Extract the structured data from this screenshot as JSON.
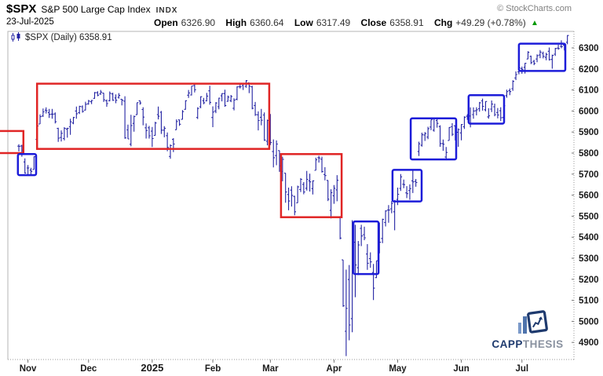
{
  "header": {
    "symbol": "$SPX",
    "name": "S&P 500 Large Cap Index",
    "exchange": "INDX",
    "date": "23-Jul-2025",
    "copyright": "© StockCharts.com",
    "quote": {
      "open_label": "Open",
      "open_value": "6326.90",
      "high_label": "High",
      "high_value": "6360.64",
      "low_label": "Low",
      "low_value": "6317.49",
      "close_label": "Close",
      "close_value": "6358.91",
      "chg_label": "Chg",
      "chg_value": "+49.29 (+0.78%)",
      "direction_icon": "▲"
    }
  },
  "legend": {
    "label": "$SPX (Daily) 6358.91"
  },
  "watermark": {
    "brand_primary": "CAPP",
    "brand_secondary": "THESIS"
  },
  "colors": {
    "bar": "#2424a3",
    "red_box": "#e02525",
    "blue_box": "#1c1cd9",
    "up_arrow": "#009900",
    "axis_text": "#1a1a1a",
    "border_solid": "#b4b4b4",
    "border_dotted": "#999999",
    "logo_navy": "#1e3a6e",
    "logo_gray": "#8a92a0",
    "logo_bar_blue": "#7a99c9"
  },
  "chart_data": {
    "type": "ohlc-bar",
    "title": "$SPX (Daily)",
    "last_price": 6358.91,
    "grid": "off",
    "y_axis_side": "right",
    "y_ticks": [
      6300,
      6200,
      6100,
      6000,
      5900,
      5800,
      5700,
      5600,
      5500,
      5400,
      5300,
      5200,
      5100,
      5000,
      4900
    ],
    "ylim": [
      4820,
      6380
    ],
    "x_axis_labels": [
      {
        "label": "Nov",
        "bar_index": 3
      },
      {
        "label": "Dec",
        "bar_index": 23
      },
      {
        "label": "2025",
        "bar_index": 44,
        "year": true
      },
      {
        "label": "Feb",
        "bar_index": 64
      },
      {
        "label": "Mar",
        "bar_index": 83
      },
      {
        "label": "Apr",
        "bar_index": 104
      },
      {
        "label": "May",
        "bar_index": 125
      },
      {
        "label": "Jun",
        "bar_index": 146
      },
      {
        "label": "Jul",
        "bar_index": 166
      }
    ],
    "bars_format": [
      "open",
      "high",
      "low",
      "close"
    ],
    "bars": [
      [
        5833,
        5842,
        5808,
        5832
      ],
      [
        5834,
        5839,
        5783,
        5814
      ],
      [
        5758,
        5775,
        5702,
        5705
      ],
      [
        5729,
        5743,
        5697,
        5729
      ],
      [
        5719,
        5730,
        5697,
        5713
      ],
      [
        5722,
        5784,
        5722,
        5783
      ],
      [
        5865,
        5930,
        5865,
        5929
      ],
      [
        5938,
        5984,
        5938,
        5973
      ],
      [
        5976,
        6012,
        5972,
        5996
      ],
      [
        6004,
        6017,
        5988,
        6001
      ],
      [
        5992,
        6010,
        5967,
        5984
      ],
      [
        5985,
        6010,
        5963,
        5985
      ],
      [
        5986,
        5993,
        5941,
        5949
      ],
      [
        5917,
        5920,
        5853,
        5871
      ],
      [
        5874,
        5908,
        5855,
        5894
      ],
      [
        5869,
        5923,
        5860,
        5917
      ],
      [
        5914,
        5920,
        5873,
        5917
      ],
      [
        5925,
        5963,
        5887,
        5949
      ],
      [
        5943,
        5972,
        5937,
        5969
      ],
      [
        6000,
        6021,
        5963,
        5987
      ],
      [
        5992,
        6025,
        5986,
        6022
      ],
      [
        6020,
        6027,
        5992,
        5998
      ],
      [
        6004,
        6044,
        6003,
        6032
      ],
      [
        6034,
        6053,
        6030,
        6047
      ],
      [
        6044,
        6053,
        6033,
        6050
      ],
      [
        6060,
        6090,
        6058,
        6087
      ],
      [
        6087,
        6094,
        6070,
        6075
      ],
      [
        6081,
        6100,
        6077,
        6090
      ],
      [
        6085,
        6086,
        6043,
        6053
      ],
      [
        6049,
        6055,
        6020,
        6035
      ],
      [
        6049,
        6093,
        6046,
        6084
      ],
      [
        6081,
        6087,
        6048,
        6051
      ],
      [
        6062,
        6079,
        6037,
        6051
      ],
      [
        6065,
        6085,
        6059,
        6074
      ],
      [
        6056,
        6057,
        6027,
        6051
      ],
      [
        6047,
        6070,
        5868,
        5872
      ],
      [
        5910,
        5935,
        5867,
        5867
      ],
      [
        5842,
        5982,
        5832,
        5931
      ],
      [
        5941,
        5978,
        5902,
        5974
      ],
      [
        5982,
        6040,
        5982,
        6040
      ],
      [
        6049,
        6050,
        6030,
        6038
      ],
      [
        6007,
        6018,
        5932,
        5971
      ],
      [
        5920,
        5941,
        5869,
        5907
      ],
      [
        5920,
        5929,
        5869,
        5882
      ],
      [
        5904,
        5924,
        5829,
        5869
      ],
      [
        5884,
        5949,
        5883,
        5943
      ],
      [
        5983,
        6021,
        5960,
        5975
      ],
      [
        5994,
        6000,
        5891,
        5909
      ],
      [
        5909,
        5928,
        5875,
        5918
      ],
      [
        5883,
        5898,
        5809,
        5827
      ],
      [
        5784,
        5841,
        5773,
        5836
      ],
      [
        5865,
        5871,
        5805,
        5843
      ],
      [
        5911,
        5960,
        5911,
        5950
      ],
      [
        5958,
        5959,
        5929,
        5937
      ],
      [
        5960,
        6004,
        5960,
        5997
      ],
      [
        6008,
        6051,
        6006,
        6049
      ],
      [
        6075,
        6100,
        6062,
        6086
      ],
      [
        6076,
        6118,
        6074,
        6119
      ],
      [
        6121,
        6128,
        6088,
        6101
      ],
      [
        5969,
        6018,
        5962,
        6012
      ],
      [
        6020,
        6070,
        6013,
        6068
      ],
      [
        6049,
        6062,
        6032,
        6039
      ],
      [
        6048,
        6086,
        6046,
        6071
      ],
      [
        6096,
        6120,
        6030,
        6041
      ],
      [
        5969,
        6022,
        5923,
        5995
      ],
      [
        6000,
        6042,
        5990,
        6038
      ],
      [
        6020,
        6063,
        6008,
        6061
      ],
      [
        6072,
        6084,
        6046,
        6083
      ],
      [
        6083,
        6101,
        6020,
        6026
      ],
      [
        6046,
        6073,
        6044,
        6066
      ],
      [
        6049,
        6076,
        6042,
        6069
      ],
      [
        6013,
        6060,
        6003,
        6052
      ],
      [
        6056,
        6117,
        6051,
        6115
      ],
      [
        6115,
        6127,
        6107,
        6115
      ],
      [
        6121,
        6130,
        6100,
        6130
      ],
      [
        6117,
        6147,
        6111,
        6144
      ],
      [
        6134,
        6135,
        6085,
        6118
      ],
      [
        6115,
        6120,
        6008,
        6013
      ],
      [
        6026,
        6043,
        5977,
        5983
      ],
      [
        5982,
        5998,
        5908,
        5955
      ],
      [
        5970,
        6010,
        5932,
        5956
      ],
      [
        5981,
        5993,
        5858,
        5862
      ],
      [
        5856,
        5959,
        5837,
        5955
      ],
      [
        5968,
        5986,
        5838,
        5850
      ],
      [
        5807,
        5865,
        5732,
        5778
      ],
      [
        5788,
        5860,
        5742,
        5843
      ],
      [
        5812,
        5812,
        5711,
        5739
      ],
      [
        5713,
        5783,
        5666,
        5770
      ],
      [
        5705,
        5705,
        5564,
        5615
      ],
      [
        5603,
        5636,
        5528,
        5572
      ],
      [
        5624,
        5642,
        5546,
        5599
      ],
      [
        5594,
        5597,
        5504,
        5521
      ],
      [
        5563,
        5645,
        5563,
        5639
      ],
      [
        5627,
        5681,
        5615,
        5675
      ],
      [
        5651,
        5662,
        5604,
        5615
      ],
      [
        5633,
        5715,
        5622,
        5675
      ],
      [
        5668,
        5702,
        5617,
        5663
      ],
      [
        5631,
        5670,
        5603,
        5668
      ],
      [
        5718,
        5778,
        5718,
        5768
      ],
      [
        5778,
        5787,
        5755,
        5777
      ],
      [
        5771,
        5783,
        5707,
        5712
      ],
      [
        5698,
        5733,
        5670,
        5693
      ],
      [
        5670,
        5671,
        5572,
        5581
      ],
      [
        5528,
        5628,
        5489,
        5612
      ],
      [
        5597,
        5648,
        5559,
        5633
      ],
      [
        5625,
        5695,
        5571,
        5671
      ],
      [
        5492,
        5500,
        5390,
        5396
      ],
      [
        5292,
        5292,
        5069,
        5074
      ],
      [
        4953,
        5246,
        4835,
        5062
      ],
      [
        5199,
        5268,
        4910,
        4983
      ],
      [
        5013,
        5481,
        4948,
        5457
      ],
      [
        5376,
        5459,
        5115,
        5268
      ],
      [
        5255,
        5382,
        5220,
        5363
      ],
      [
        5442,
        5459,
        5358,
        5406
      ],
      [
        5412,
        5450,
        5386,
        5397
      ],
      [
        5320,
        5367,
        5245,
        5276
      ],
      [
        5298,
        5328,
        5255,
        5283
      ],
      [
        5232,
        5273,
        5101,
        5158
      ],
      [
        5208,
        5288,
        5206,
        5288
      ],
      [
        5398,
        5469,
        5323,
        5376
      ],
      [
        5394,
        5488,
        5372,
        5485
      ],
      [
        5470,
        5528,
        5451,
        5525
      ],
      [
        5529,
        5553,
        5469,
        5529
      ],
      [
        5535,
        5572,
        5514,
        5561
      ],
      [
        5521,
        5577,
        5433,
        5569
      ],
      [
        5580,
        5636,
        5553,
        5604
      ],
      [
        5632,
        5700,
        5620,
        5687
      ],
      [
        5652,
        5674,
        5633,
        5650
      ],
      [
        5611,
        5643,
        5586,
        5607
      ],
      [
        5622,
        5651,
        5578,
        5631
      ],
      [
        5668,
        5720,
        5610,
        5663
      ],
      [
        5666,
        5677,
        5640,
        5660
      ],
      [
        5807,
        5854,
        5786,
        5844
      ],
      [
        5837,
        5897,
        5831,
        5887
      ],
      [
        5886,
        5900,
        5858,
        5893
      ],
      [
        5876,
        5925,
        5866,
        5916
      ],
      [
        5924,
        5958,
        5909,
        5958
      ],
      [
        5909,
        5968,
        5902,
        5964
      ],
      [
        5955,
        5963,
        5921,
        5941
      ],
      [
        5926,
        5932,
        5830,
        5845
      ],
      [
        5845,
        5864,
        5811,
        5842
      ],
      [
        5781,
        5829,
        5767,
        5803
      ],
      [
        5860,
        5923,
        5860,
        5922
      ],
      [
        5925,
        5942,
        5881,
        5889
      ],
      [
        5930,
        5930,
        5860,
        5912
      ],
      [
        5899,
        5917,
        5830,
        5912
      ],
      [
        5896,
        5937,
        5861,
        5936
      ],
      [
        5925,
        5975,
        5915,
        5970
      ],
      [
        5975,
        5985,
        5958,
        5971
      ],
      [
        5976,
        6017,
        5922,
        5939
      ],
      [
        5983,
        6017,
        5963,
        6000
      ],
      [
        6001,
        6018,
        5979,
        6006
      ],
      [
        6011,
        6043,
        5997,
        6039
      ],
      [
        6048,
        6059,
        6002,
        6022
      ],
      [
        6006,
        6046,
        5998,
        6045
      ],
      [
        5972,
        6013,
        5963,
        5977
      ],
      [
        6009,
        6050,
        5995,
        6033
      ],
      [
        6020,
        6035,
        5975,
        5983
      ],
      [
        5993,
        6014,
        5965,
        5981
      ],
      [
        6001,
        6018,
        5952,
        5968
      ],
      [
        5969,
        6031,
        5943,
        6025
      ],
      [
        6073,
        6101,
        6063,
        6092
      ],
      [
        6097,
        6107,
        6075,
        6092
      ],
      [
        6106,
        6146,
        6096,
        6141
      ],
      [
        6157,
        6188,
        6147,
        6173
      ],
      [
        6186,
        6215,
        6174,
        6205
      ],
      [
        6201,
        6211,
        6177,
        6198
      ],
      [
        6208,
        6228,
        6178,
        6227
      ],
      [
        6247,
        6284,
        6247,
        6279
      ],
      [
        6260,
        6263,
        6223,
        6230
      ],
      [
        6236,
        6243,
        6218,
        6226
      ],
      [
        6247,
        6269,
        6232,
        6263
      ],
      [
        6266,
        6290,
        6251,
        6280
      ],
      [
        6274,
        6282,
        6250,
        6260
      ],
      [
        6255,
        6277,
        6241,
        6269
      ],
      [
        6284,
        6302,
        6240,
        6244
      ],
      [
        6245,
        6268,
        6201,
        6264
      ],
      [
        6270,
        6300,
        6262,
        6297
      ],
      [
        6299,
        6315,
        6291,
        6297
      ],
      [
        6308,
        6336,
        6298,
        6306
      ],
      [
        6313,
        6318,
        6288,
        6310
      ],
      [
        6327,
        6361,
        6317,
        6359
      ]
    ],
    "annotations": [
      {
        "shape": "rect",
        "color": "red",
        "from_bar": -9,
        "to_bar": 1.5,
        "price_low": 5800,
        "price_high": 5905
      },
      {
        "shape": "rect",
        "color": "blue",
        "from_bar": -0.3,
        "to_bar": 5.7,
        "price_low": 5695,
        "price_high": 5795
      },
      {
        "shape": "rect",
        "color": "red",
        "from_bar": 6,
        "to_bar": 82.6,
        "price_low": 5820,
        "price_high": 6130
      },
      {
        "shape": "rect",
        "color": "red",
        "from_bar": 86.5,
        "to_bar": 106.5,
        "price_low": 5495,
        "price_high": 5795
      },
      {
        "shape": "rect",
        "color": "blue",
        "from_bar": 110.4,
        "to_bar": 118.7,
        "price_low": 5225,
        "price_high": 5475
      },
      {
        "shape": "rect",
        "color": "blue",
        "from_bar": 123.3,
        "to_bar": 132.9,
        "price_low": 5570,
        "price_high": 5720
      },
      {
        "shape": "rect",
        "color": "blue",
        "from_bar": 129.3,
        "to_bar": 144.3,
        "price_low": 5770,
        "price_high": 5965
      },
      {
        "shape": "rect",
        "color": "blue",
        "from_bar": 148.4,
        "to_bar": 160.1,
        "price_low": 5940,
        "price_high": 6075
      },
      {
        "shape": "rect",
        "color": "blue",
        "from_bar": 165,
        "to_bar": 180.3,
        "price_low": 6190,
        "price_high": 6320
      }
    ]
  }
}
